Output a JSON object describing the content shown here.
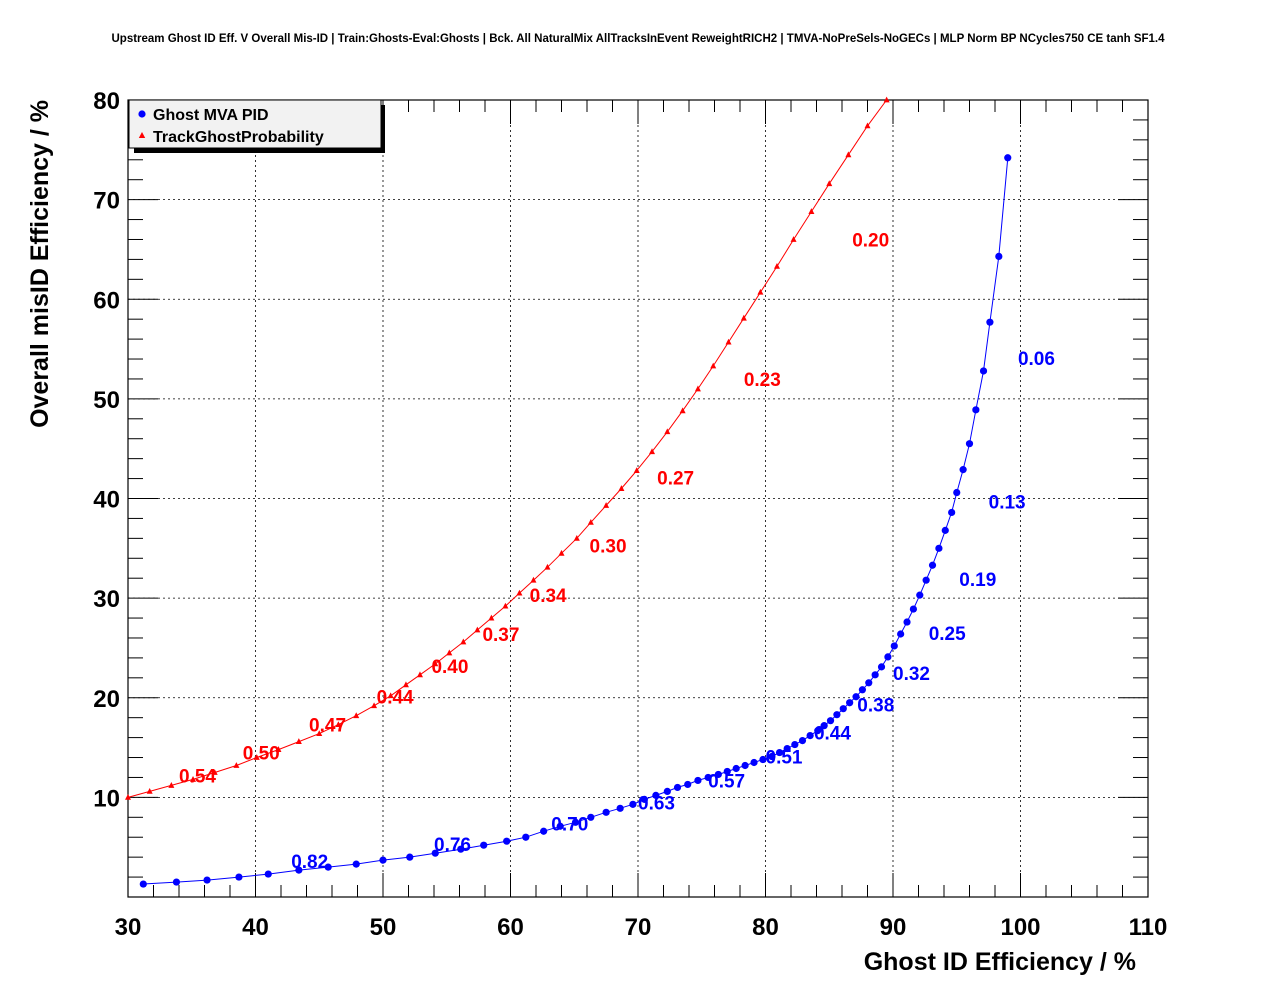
{
  "chart_data": {
    "type": "line",
    "title": "Upstream Ghost ID Eff. V Overall Mis-ID | Train:Ghosts-Eval:Ghosts | Bck. All NaturalMix AllTracksInEvent ReweightRICH2 | TMVA-NoPreSels-NoGECs | MLP Norm BP NCycles750 CE tanh SF1.4",
    "xlabel": "Ghost ID Efficiency / %",
    "ylabel": "Overall misID Efficiency / %",
    "xlim": [
      30,
      110
    ],
    "ylim": [
      0,
      80
    ],
    "xticks": [
      30,
      40,
      50,
      60,
      70,
      80,
      90,
      100,
      110
    ],
    "yticks": [
      10,
      20,
      30,
      40,
      50,
      60,
      70,
      80
    ],
    "grid": true,
    "legend_position": "top-left",
    "series": [
      {
        "name": "Ghost MVA PID",
        "color": "#0000ff",
        "marker": "circle",
        "points": [
          [
            31.2,
            1.3
          ],
          [
            33.8,
            1.5
          ],
          [
            36.2,
            1.7
          ],
          [
            38.7,
            2.0
          ],
          [
            41.0,
            2.3
          ],
          [
            43.4,
            2.7
          ],
          [
            45.7,
            3.0
          ],
          [
            47.9,
            3.3
          ],
          [
            50.0,
            3.7
          ],
          [
            52.1,
            4.0
          ],
          [
            54.1,
            4.4
          ],
          [
            56.1,
            4.8
          ],
          [
            57.9,
            5.2
          ],
          [
            59.7,
            5.6
          ],
          [
            61.2,
            6.0
          ],
          [
            62.6,
            6.6
          ],
          [
            63.9,
            7.1
          ],
          [
            65.1,
            7.5
          ],
          [
            66.3,
            8.0
          ],
          [
            67.5,
            8.5
          ],
          [
            68.6,
            8.9
          ],
          [
            69.6,
            9.3
          ],
          [
            70.5,
            9.8
          ],
          [
            71.4,
            10.2
          ],
          [
            72.3,
            10.6
          ],
          [
            73.1,
            11.0
          ],
          [
            73.9,
            11.3
          ],
          [
            74.7,
            11.7
          ],
          [
            75.5,
            12.0
          ],
          [
            76.3,
            12.3
          ],
          [
            77.0,
            12.6
          ],
          [
            77.7,
            12.9
          ],
          [
            78.4,
            13.2
          ],
          [
            79.1,
            13.5
          ],
          [
            79.8,
            13.8
          ],
          [
            80.5,
            14.1
          ],
          [
            81.1,
            14.5
          ],
          [
            81.7,
            14.9
          ],
          [
            82.3,
            15.3
          ],
          [
            82.9,
            15.7
          ],
          [
            83.5,
            16.2
          ],
          [
            84.1,
            16.7
          ],
          [
            84.6,
            17.2
          ],
          [
            85.1,
            17.7
          ],
          [
            85.6,
            18.3
          ],
          [
            86.1,
            18.9
          ],
          [
            86.6,
            19.5
          ],
          [
            87.1,
            20.1
          ],
          [
            87.6,
            20.8
          ],
          [
            88.1,
            21.5
          ],
          [
            88.6,
            22.3
          ],
          [
            89.1,
            23.1
          ],
          [
            89.6,
            24.1
          ],
          [
            90.1,
            25.2
          ],
          [
            90.6,
            26.4
          ],
          [
            91.1,
            27.6
          ],
          [
            91.6,
            28.9
          ],
          [
            92.1,
            30.3
          ],
          [
            92.6,
            31.8
          ],
          [
            93.1,
            33.3
          ],
          [
            93.6,
            35.0
          ],
          [
            94.1,
            36.8
          ],
          [
            94.6,
            38.6
          ],
          [
            95.0,
            40.6
          ],
          [
            95.5,
            42.9
          ],
          [
            96.0,
            45.5
          ],
          [
            96.5,
            48.9
          ],
          [
            97.1,
            52.8
          ],
          [
            97.6,
            57.7
          ],
          [
            98.3,
            64.3
          ],
          [
            99.0,
            74.2
          ]
        ],
        "cut_labels": [
          {
            "text": "0.06",
            "x": 99.8,
            "y": 53.4
          },
          {
            "text": "0.13",
            "x": 97.5,
            "y": 39.0
          },
          {
            "text": "0.19",
            "x": 95.2,
            "y": 31.2
          },
          {
            "text": "0.25",
            "x": 92.8,
            "y": 25.8
          },
          {
            "text": "0.32",
            "x": 90.0,
            "y": 21.8
          },
          {
            "text": "0.38",
            "x": 87.2,
            "y": 18.6
          },
          {
            "text": "0.44",
            "x": 83.8,
            "y": 15.8
          },
          {
            "text": "0.51",
            "x": 80.0,
            "y": 13.4
          },
          {
            "text": "0.57",
            "x": 75.5,
            "y": 11.0
          },
          {
            "text": "0.63",
            "x": 70.0,
            "y": 8.8
          },
          {
            "text": "0.70",
            "x": 63.2,
            "y": 6.7
          },
          {
            "text": "0.76",
            "x": 54.0,
            "y": 4.6
          },
          {
            "text": "0.82",
            "x": 42.8,
            "y": 2.9
          }
        ]
      },
      {
        "name": "TrackGhostProbability",
        "color": "#ff0000",
        "marker": "triangle",
        "points": [
          [
            30.0,
            10.0
          ],
          [
            31.7,
            10.6
          ],
          [
            33.4,
            11.2
          ],
          [
            35.1,
            11.8
          ],
          [
            36.8,
            12.5
          ],
          [
            38.5,
            13.2
          ],
          [
            40.1,
            14.0
          ],
          [
            41.8,
            14.8
          ],
          [
            43.4,
            15.6
          ],
          [
            45.0,
            16.4
          ],
          [
            46.5,
            17.3
          ],
          [
            47.9,
            18.2
          ],
          [
            49.3,
            19.2
          ],
          [
            50.6,
            20.2
          ],
          [
            51.8,
            21.3
          ],
          [
            52.9,
            22.3
          ],
          [
            54.1,
            23.4
          ],
          [
            55.2,
            24.5
          ],
          [
            56.3,
            25.6
          ],
          [
            57.4,
            26.8
          ],
          [
            58.5,
            28.0
          ],
          [
            59.6,
            29.2
          ],
          [
            60.7,
            30.5
          ],
          [
            61.8,
            31.8
          ],
          [
            62.9,
            33.1
          ],
          [
            64.0,
            34.5
          ],
          [
            65.2,
            36.0
          ],
          [
            66.3,
            37.6
          ],
          [
            67.5,
            39.3
          ],
          [
            68.7,
            41.0
          ],
          [
            69.9,
            42.8
          ],
          [
            71.1,
            44.7
          ],
          [
            72.3,
            46.7
          ],
          [
            73.5,
            48.8
          ],
          [
            74.7,
            51.0
          ],
          [
            75.9,
            53.3
          ],
          [
            77.1,
            55.7
          ],
          [
            78.3,
            58.1
          ],
          [
            79.6,
            60.7
          ],
          [
            80.9,
            63.3
          ],
          [
            82.2,
            66.0
          ],
          [
            83.6,
            68.8
          ],
          [
            85.0,
            71.6
          ],
          [
            86.5,
            74.5
          ],
          [
            88.0,
            77.4
          ],
          [
            89.5,
            80.0
          ]
        ],
        "cut_labels": [
          {
            "text": "0.20",
            "x": 86.8,
            "y": 65.3
          },
          {
            "text": "0.23",
            "x": 78.3,
            "y": 51.3
          },
          {
            "text": "0.27",
            "x": 71.5,
            "y": 41.4
          },
          {
            "text": "0.30",
            "x": 66.2,
            "y": 34.6
          },
          {
            "text": "0.34",
            "x": 61.5,
            "y": 29.6
          },
          {
            "text": "0.37",
            "x": 57.8,
            "y": 25.7
          },
          {
            "text": "0.40",
            "x": 53.8,
            "y": 22.5
          },
          {
            "text": "0.44",
            "x": 49.5,
            "y": 19.4
          },
          {
            "text": "0.47",
            "x": 44.2,
            "y": 16.6
          },
          {
            "text": "0.50",
            "x": 39.0,
            "y": 13.8
          },
          {
            "text": "0.54",
            "x": 34.0,
            "y": 11.5
          }
        ]
      }
    ]
  }
}
